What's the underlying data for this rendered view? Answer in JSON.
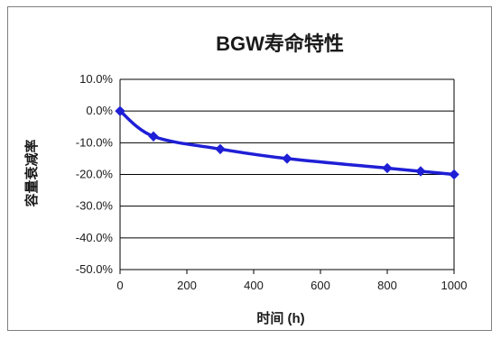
{
  "chart_data": {
    "type": "line",
    "title": "BGW寿命特性",
    "xlabel": "时间 (h)",
    "ylabel": "容量衰减率",
    "x": [
      0,
      100,
      300,
      500,
      800,
      900,
      1000
    ],
    "series": [
      {
        "values": [
          0.0,
          -8.0,
          -12.0,
          -15.0,
          -18.0,
          -19.0,
          -20.0
        ]
      }
    ],
    "xlim": [
      0,
      1000
    ],
    "ylim": [
      -50,
      10
    ],
    "xticks": [
      0,
      200,
      400,
      600,
      800,
      1000
    ],
    "xtick_labels": [
      "0",
      "200",
      "400",
      "600",
      "800",
      "1000"
    ],
    "yticks": [
      10,
      0,
      -10,
      -20,
      -30,
      -40,
      -50
    ],
    "ytick_labels": [
      "10.0%",
      "0.0%",
      "-10.0%",
      "-20.0%",
      "-30.0%",
      "-40.0%",
      "-50.0%"
    ],
    "grid": "horizontal",
    "legend": "none",
    "line_color": "#1f1fd6",
    "marker": "diamond"
  }
}
